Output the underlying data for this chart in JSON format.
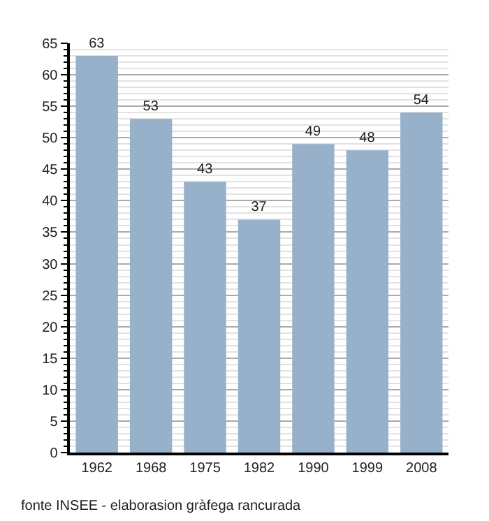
{
  "chart_data": {
    "type": "bar",
    "categories": [
      "1962",
      "1968",
      "1975",
      "1982",
      "1990",
      "1999",
      "2008"
    ],
    "values": [
      63,
      53,
      43,
      37,
      49,
      48,
      54
    ],
    "color": "#97b1cb",
    "ylim": [
      0,
      65
    ],
    "yticks": [
      0,
      5,
      10,
      15,
      20,
      25,
      30,
      35,
      40,
      45,
      50,
      55,
      60,
      65
    ],
    "grid": "y",
    "data_labels": true,
    "legend": false,
    "annotations": [
      "fonte INSEE - elaborasion gràfega rancurada"
    ]
  }
}
